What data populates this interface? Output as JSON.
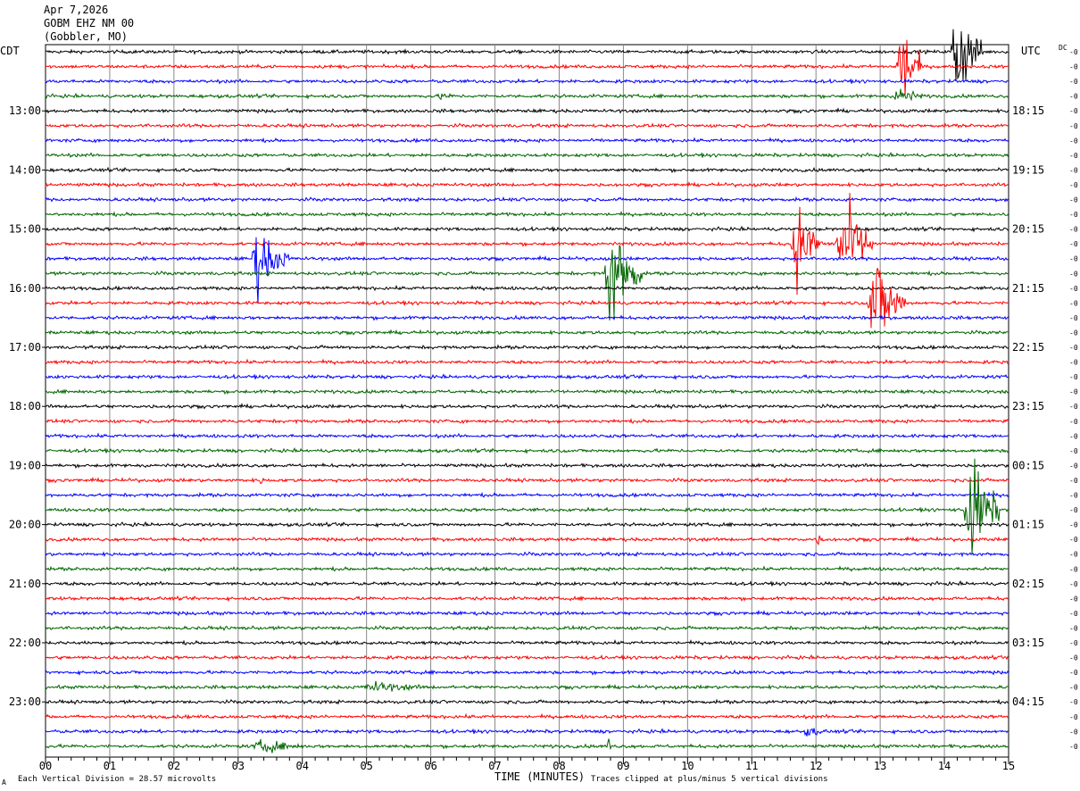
{
  "header": {
    "date": "Apr 7,2026",
    "station": "GOBM EHZ NM 00",
    "site": "(Gobbler, MO)"
  },
  "tz_left": "CDT",
  "tz_right": "UTC",
  "dc_label": "DC",
  "footer": {
    "scale": "Each Vertical Division =   28.57 microvolts",
    "xlabel": "TIME (MINUTES)",
    "clip": "Traces clipped at plus/minus 5 vertical divisions",
    "mark": "A"
  },
  "chart_data": {
    "type": "line",
    "title": "",
    "xlabel": "TIME (MINUTES)",
    "x_ticks": [
      "00",
      "01",
      "02",
      "03",
      "04",
      "05",
      "06",
      "07",
      "08",
      "09",
      "10",
      "11",
      "12",
      "13",
      "14",
      "15"
    ],
    "xlim": [
      0,
      15
    ],
    "left_time_labels": [
      "13:00",
      "14:00",
      "15:00",
      "16:00",
      "17:00",
      "18:00",
      "19:00",
      "20:00",
      "21:00",
      "22:00",
      "23:00"
    ],
    "right_time_labels": [
      "18:15",
      "19:15",
      "20:15",
      "21:15",
      "22:15",
      "23:15",
      "00:15",
      "01:15",
      "02:15",
      "03:15",
      "04:15"
    ],
    "trace_count": 48,
    "traces_per_hour": 4,
    "trace_colors": [
      "#000000",
      "#ff0000",
      "#0000ff",
      "#006400"
    ],
    "dc_offset_label": "-0",
    "events": [
      {
        "trace": 1,
        "start_min": 13.25,
        "end_min": 13.65,
        "amplitude": 5
      },
      {
        "trace": 0,
        "start_min": 14.1,
        "end_min": 14.6,
        "amplitude": 5
      },
      {
        "trace": 3,
        "start_min": 13.2,
        "end_min": 13.7,
        "amplitude": 1
      },
      {
        "trace": 14,
        "start_min": 3.2,
        "end_min": 3.8,
        "amplitude": 3
      },
      {
        "trace": 15,
        "start_min": 8.7,
        "end_min": 9.3,
        "amplitude": 5
      },
      {
        "trace": 13,
        "start_min": 11.6,
        "end_min": 12.1,
        "amplitude": 4
      },
      {
        "trace": 13,
        "start_min": 12.3,
        "end_min": 12.9,
        "amplitude": 5
      },
      {
        "trace": 17,
        "start_min": 12.8,
        "end_min": 13.4,
        "amplitude": 5
      },
      {
        "trace": 31,
        "start_min": 14.3,
        "end_min": 14.9,
        "amplitude": 5
      },
      {
        "trace": 3,
        "start_min": 6.1,
        "end_min": 6.5,
        "amplitude": 0.4
      },
      {
        "trace": 43,
        "start_min": 4.9,
        "end_min": 6.3,
        "amplitude": 0.5
      },
      {
        "trace": 47,
        "start_min": 3.2,
        "end_min": 4.3,
        "amplitude": 0.6
      },
      {
        "trace": 47,
        "start_min": 8.75,
        "end_min": 8.85,
        "amplitude": 1
      },
      {
        "trace": 29,
        "start_min": 3.3,
        "end_min": 3.5,
        "amplitude": 0.4
      },
      {
        "trace": 33,
        "start_min": 12.0,
        "end_min": 12.2,
        "amplitude": 0.5
      },
      {
        "trace": 46,
        "start_min": 11.8,
        "end_min": 12.3,
        "amplitude": 0.5
      }
    ]
  }
}
